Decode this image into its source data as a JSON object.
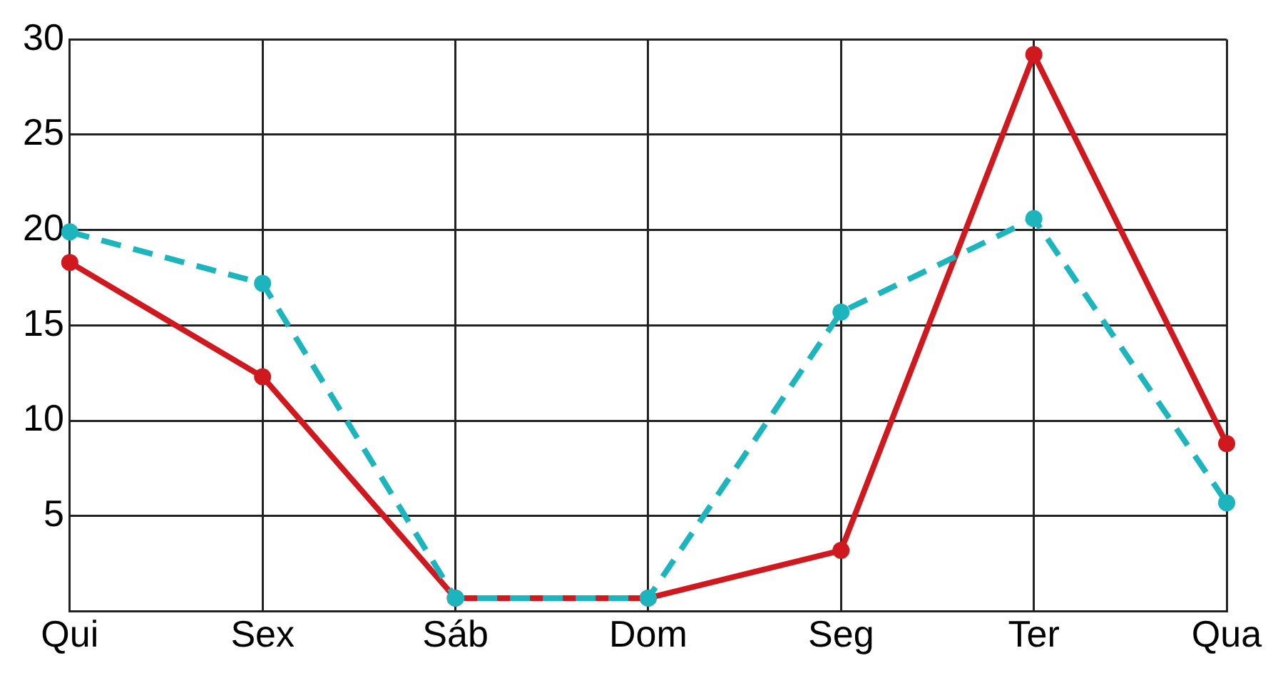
{
  "chart_data": {
    "type": "line",
    "categories": [
      "Qui",
      "Sex",
      "Sáb",
      "Dom",
      "Seg",
      "Ter",
      "Qua"
    ],
    "series": [
      {
        "color": "#1db5bd",
        "line_style": "dashed",
        "values": [
          19.9,
          17.2,
          0.7,
          0.7,
          15.7,
          20.6,
          5.7
        ]
      },
      {
        "color": "#d0191f",
        "line_style": "solid",
        "values": [
          18.3,
          12.3,
          0.7,
          0.7,
          3.2,
          29.2,
          8.8
        ]
      }
    ],
    "ylim": [
      0,
      30
    ],
    "yticks": [
      {
        "value": 0,
        "label": null
      },
      5,
      10,
      15,
      20,
      25,
      30
    ],
    "grid": true,
    "legend": false,
    "marker": "circle"
  }
}
